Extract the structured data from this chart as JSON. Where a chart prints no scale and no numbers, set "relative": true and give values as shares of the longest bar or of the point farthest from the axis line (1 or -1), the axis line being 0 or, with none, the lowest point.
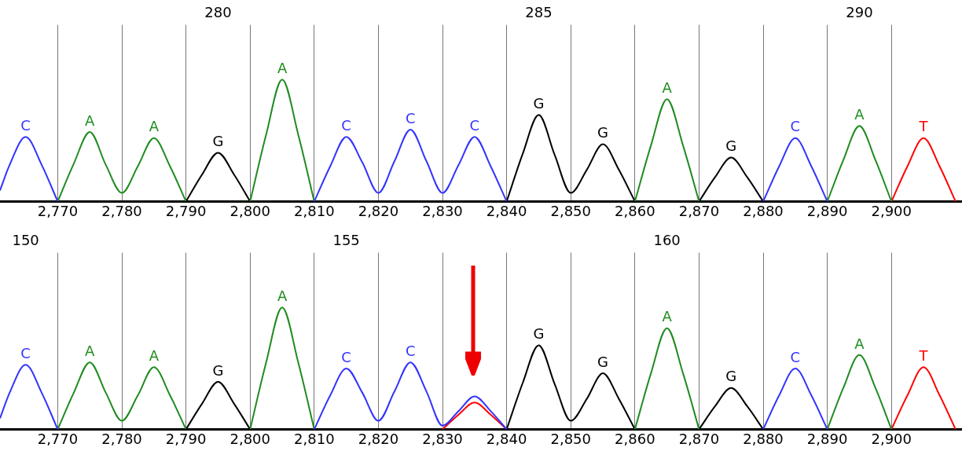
{
  "chart_data": [
    {
      "type": "line",
      "relative": true,
      "grid": "x",
      "marker": "none",
      "xlim": [
        2761,
        2911
      ],
      "xticks": [
        {
          "value": 2770,
          "label": "2,770"
        },
        {
          "value": 2780,
          "label": "2,780"
        },
        {
          "value": 2790,
          "label": "2,790"
        },
        {
          "value": 2800,
          "label": "2,800"
        },
        {
          "value": 2810,
          "label": "2,810"
        },
        {
          "value": 2820,
          "label": "2,820"
        },
        {
          "value": 2830,
          "label": "2,830"
        },
        {
          "value": 2840,
          "label": "2,840"
        },
        {
          "value": 2850,
          "label": "2,850"
        },
        {
          "value": 2860,
          "label": "2,860"
        },
        {
          "value": 2870,
          "label": "2,870"
        },
        {
          "value": 2880,
          "label": "2,880"
        },
        {
          "value": 2890,
          "label": "2,890"
        },
        {
          "value": 2900,
          "label": "2,900"
        }
      ],
      "x2lim": [
        276.6,
        291.6
      ],
      "x2ticks": [
        280,
        285,
        290
      ],
      "series": [
        {
          "color": "#3333ff",
          "x": [
            2761,
            2762.5,
            2765,
            2767.5,
            2770,
            2790,
            2810,
            2812.5,
            2815,
            2817.5,
            2820,
            2822.5,
            2825,
            2827.5,
            2830,
            2832.5,
            2835,
            2837.5,
            2840,
            2860,
            2880,
            2882.5,
            2885,
            2887.5,
            2890
          ],
          "values": [
            0.09,
            0.3,
            0.53,
            0.3,
            0,
            null,
            0,
            0.29,
            0.53,
            0.32,
            0.07,
            0.33,
            0.59,
            0.33,
            0.07,
            0.3,
            0.53,
            0.29,
            0,
            null,
            0,
            0.29,
            0.52,
            0.29,
            0
          ]
        },
        {
          "color": "#1f8c1f",
          "x": [
            2770,
            2772.5,
            2775,
            2777.5,
            2780,
            2782.5,
            2785,
            2787.5,
            2790,
            2795,
            2800,
            2802.5,
            2805,
            2807.5,
            2810,
            2835,
            2860,
            2862.5,
            2865,
            2867.5,
            2870,
            2880,
            2890,
            2892.5,
            2895,
            2897.5,
            2900
          ],
          "values": [
            0,
            0.31,
            0.57,
            0.3,
            0.07,
            0.29,
            0.52,
            0.29,
            0,
            null,
            0,
            0.55,
            1,
            0.55,
            0,
            null,
            0,
            0.46,
            0.84,
            0.46,
            0,
            null,
            0,
            0.34,
            0.62,
            0.34,
            0
          ]
        },
        {
          "color": "#000000",
          "x": [
            2790,
            2792.5,
            2795,
            2797.5,
            2800,
            2820,
            2840,
            2842.5,
            2845,
            2847.5,
            2850,
            2852.5,
            2855,
            2857.5,
            2860,
            2865,
            2870,
            2872.5,
            2875,
            2877.5,
            2880
          ],
          "values": [
            0,
            0.22,
            0.4,
            0.22,
            0,
            null,
            0,
            0.39,
            0.71,
            0.38,
            0.07,
            0.26,
            0.47,
            0.26,
            0,
            null,
            0,
            0.2,
            0.36,
            0.2,
            0
          ]
        },
        {
          "color": "#ff0000",
          "x": [
            2900,
            2902.5,
            2905,
            2907.5,
            2910
          ],
          "values": [
            0,
            0.29,
            0.52,
            0.29,
            0
          ]
        }
      ],
      "annotations": [
        {
          "text": "C",
          "x": 2765,
          "y": 0.53
        },
        {
          "text": "A",
          "x": 2775,
          "y": 0.57
        },
        {
          "text": "A",
          "x": 2785,
          "y": 0.52
        },
        {
          "text": "G",
          "x": 2795,
          "y": 0.4
        },
        {
          "text": "A",
          "x": 2805,
          "y": 1
        },
        {
          "text": "C",
          "x": 2815,
          "y": 0.53
        },
        {
          "text": "C",
          "x": 2825,
          "y": 0.59
        },
        {
          "text": "C",
          "x": 2835,
          "y": 0.53
        },
        {
          "text": "G",
          "x": 2845,
          "y": 0.71
        },
        {
          "text": "G",
          "x": 2855,
          "y": 0.47
        },
        {
          "text": "A",
          "x": 2865,
          "y": 0.84
        },
        {
          "text": "G",
          "x": 2875,
          "y": 0.36
        },
        {
          "text": "C",
          "x": 2885,
          "y": 0.52
        },
        {
          "text": "A",
          "x": 2895,
          "y": 0.62
        },
        {
          "text": "T",
          "x": 2905,
          "y": 0.52
        }
      ]
    },
    {
      "type": "line",
      "relative": true,
      "grid": "x",
      "marker": "none",
      "xlim": [
        2761,
        2911
      ],
      "xticks": [
        {
          "value": 2770,
          "label": "2,770"
        },
        {
          "value": 2780,
          "label": "2,780"
        },
        {
          "value": 2790,
          "label": "2,790"
        },
        {
          "value": 2800,
          "label": "2,800"
        },
        {
          "value": 2810,
          "label": "2,810"
        },
        {
          "value": 2820,
          "label": "2,820"
        },
        {
          "value": 2830,
          "label": "2,830"
        },
        {
          "value": 2840,
          "label": "2,840"
        },
        {
          "value": 2850,
          "label": "2,850"
        },
        {
          "value": 2860,
          "label": "2,860"
        },
        {
          "value": 2870,
          "label": "2,870"
        },
        {
          "value": 2880,
          "label": "2,880"
        },
        {
          "value": 2890,
          "label": "2,890"
        },
        {
          "value": 2900,
          "label": "2,900"
        }
      ],
      "x2lim": [
        149.6,
        164.6
      ],
      "x2ticks": [
        150,
        155,
        160
      ],
      "series": [
        {
          "color": "#3333ff",
          "x": [
            2761,
            2762.5,
            2765,
            2767.5,
            2770,
            2790,
            2810,
            2812.5,
            2815,
            2817.5,
            2820,
            2822.5,
            2825,
            2827.5,
            2830,
            2832.5,
            2835,
            2837.5,
            2840,
            2860,
            2880,
            2882.5,
            2885,
            2887.5,
            2890
          ],
          "values": [
            0.09,
            0.3,
            0.53,
            0.3,
            0,
            null,
            0,
            0.28,
            0.5,
            0.3,
            0.07,
            0.31,
            0.55,
            0.31,
            0.03,
            0.15,
            0.27,
            0.15,
            0,
            null,
            0,
            0.28,
            0.5,
            0.28,
            0
          ]
        },
        {
          "color": "#1f8c1f",
          "x": [
            2770,
            2772.5,
            2775,
            2777.5,
            2780,
            2782.5,
            2785,
            2787.5,
            2790,
            2795,
            2800,
            2802.5,
            2805,
            2807.5,
            2810,
            2835,
            2860,
            2862.5,
            2865,
            2867.5,
            2870,
            2880,
            2890,
            2892.5,
            2895,
            2897.5,
            2900
          ],
          "values": [
            0,
            0.3,
            0.55,
            0.3,
            0.07,
            0.28,
            0.51,
            0.28,
            0,
            null,
            0,
            0.55,
            1,
            0.55,
            0,
            null,
            0,
            0.46,
            0.83,
            0.46,
            0,
            null,
            0,
            0.34,
            0.61,
            0.34,
            0
          ]
        },
        {
          "color": "#000000",
          "x": [
            2790,
            2792.5,
            2795,
            2797.5,
            2800,
            2820,
            2840,
            2842.5,
            2845,
            2847.5,
            2850,
            2852.5,
            2855,
            2857.5,
            2860,
            2865,
            2870,
            2872.5,
            2875,
            2877.5,
            2880
          ],
          "values": [
            0,
            0.21,
            0.39,
            0.21,
            0,
            null,
            0,
            0.38,
            0.69,
            0.37,
            0.07,
            0.25,
            0.46,
            0.25,
            0,
            null,
            0,
            0.19,
            0.34,
            0.19,
            0
          ]
        },
        {
          "color": "#ff0000",
          "x": [
            2830,
            2832.5,
            2835,
            2837.5,
            2840,
            2870,
            2900,
            2902.5,
            2905,
            2907.5,
            2910
          ],
          "values": [
            0,
            0.12,
            0.22,
            0.12,
            0,
            null,
            0,
            0.28,
            0.51,
            0.28,
            0
          ]
        }
      ],
      "annotations": [
        {
          "text": "C",
          "x": 2765,
          "y": 0.53
        },
        {
          "text": "A",
          "x": 2775,
          "y": 0.55
        },
        {
          "text": "A",
          "x": 2785,
          "y": 0.51
        },
        {
          "text": "G",
          "x": 2795,
          "y": 0.39
        },
        {
          "text": "A",
          "x": 2805,
          "y": 1
        },
        {
          "text": "C",
          "x": 2815,
          "y": 0.5
        },
        {
          "text": "C",
          "x": 2825,
          "y": 0.55
        },
        {
          "text": "G",
          "x": 2845,
          "y": 0.69
        },
        {
          "text": "G",
          "x": 2855,
          "y": 0.46
        },
        {
          "text": "A",
          "x": 2865,
          "y": 0.83
        },
        {
          "text": "G",
          "x": 2875,
          "y": 0.34
        },
        {
          "text": "C",
          "x": 2885,
          "y": 0.5
        },
        {
          "text": "A",
          "x": 2895,
          "y": 0.61
        },
        {
          "text": "T",
          "x": 2905,
          "y": 0.51
        }
      ]
    }
  ]
}
